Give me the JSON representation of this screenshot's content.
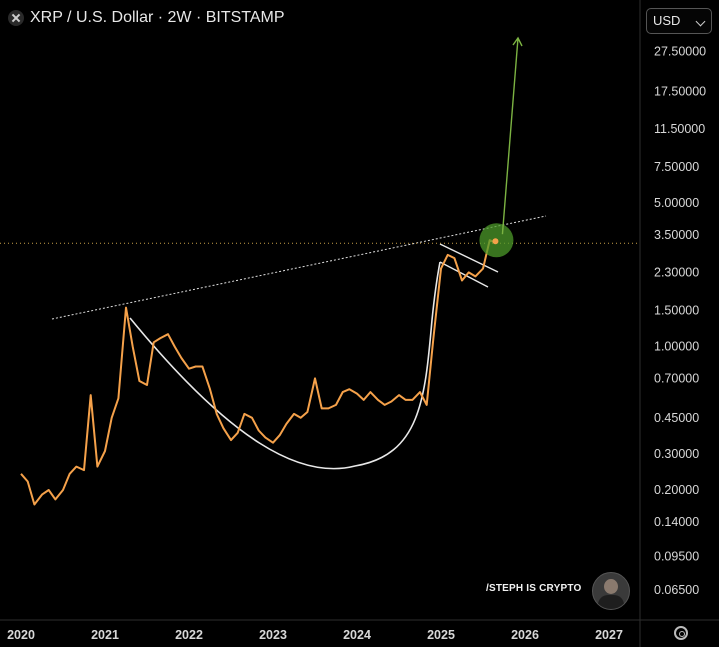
{
  "header": {
    "symbol_title": "XRP / U.S. Dollar · 2W · BITSTAMP"
  },
  "currency_select": {
    "value": "USD"
  },
  "watermark": {
    "text": "/STEPH IS CRYPTO"
  },
  "colors": {
    "price": "#f5a14a",
    "cup": "#e8e8e8",
    "target_arrow": "#7cb342",
    "highlight": "#4c9a2a",
    "current_price_line": "#caa24a"
  },
  "chart_data": {
    "type": "line",
    "title": "XRP / U.S. Dollar · 2W · BITSTAMP",
    "y_scale": "log",
    "y_ticks": [
      "27.50000",
      "17.50000",
      "11.50000",
      "7.50000",
      "5.00000",
      "3.50000",
      "2.30000",
      "1.50000",
      "1.00000",
      "0.70000",
      "0.45000",
      "0.30000",
      "0.20000",
      "0.14000",
      "0.09500",
      "0.06500"
    ],
    "x_ticks": [
      "2020",
      "2021",
      "2022",
      "2023",
      "2024",
      "2025",
      "2026",
      "2027"
    ],
    "current_price": 3.3,
    "series": [
      {
        "x": [
          2020.0,
          2020.08,
          2020.16,
          2020.25,
          2020.33,
          2020.41,
          2020.5,
          2020.58,
          2020.66,
          2020.75,
          2020.83,
          2020.91,
          2021.0,
          2021.08,
          2021.16,
          2021.25,
          2021.33,
          2021.41,
          2021.5,
          2021.58,
          2021.66,
          2021.75,
          2021.83,
          2021.91,
          2022.0,
          2022.08,
          2022.16,
          2022.25,
          2022.33,
          2022.41,
          2022.5,
          2022.58,
          2022.66,
          2022.75,
          2022.83,
          2022.91,
          2023.0,
          2023.08,
          2023.16,
          2023.25,
          2023.33,
          2023.41,
          2023.5,
          2023.58,
          2023.66,
          2023.75,
          2023.83,
          2023.91,
          2024.0,
          2024.08,
          2024.16,
          2024.25,
          2024.33,
          2024.41,
          2024.5,
          2024.58,
          2024.66,
          2024.75,
          2024.83,
          2024.91,
          2025.0,
          2025.08,
          2025.16,
          2025.25,
          2025.33,
          2025.41,
          2025.5,
          2025.58,
          2025.66
        ],
        "values": [
          0.24,
          0.22,
          0.17,
          0.19,
          0.2,
          0.18,
          0.2,
          0.24,
          0.26,
          0.25,
          0.58,
          0.26,
          0.31,
          0.45,
          0.56,
          1.55,
          1.0,
          0.68,
          0.65,
          1.05,
          1.1,
          1.15,
          1.0,
          0.88,
          0.78,
          0.8,
          0.8,
          0.62,
          0.47,
          0.4,
          0.35,
          0.38,
          0.47,
          0.45,
          0.39,
          0.36,
          0.34,
          0.37,
          0.42,
          0.47,
          0.45,
          0.48,
          0.7,
          0.5,
          0.5,
          0.52,
          0.6,
          0.62,
          0.59,
          0.55,
          0.6,
          0.55,
          0.52,
          0.54,
          0.58,
          0.55,
          0.55,
          0.6,
          0.52,
          1.1,
          2.4,
          2.8,
          2.7,
          2.1,
          2.3,
          2.2,
          2.4,
          3.3,
          3.2
        ]
      }
    ],
    "projection": {
      "from_x": 2025.66,
      "from_y": 3.3,
      "to_x": 2025.9,
      "to_y": 27.5
    }
  },
  "x_axis": {
    "labels": [
      "2020",
      "2021",
      "2022",
      "2023",
      "2024",
      "2025",
      "2026",
      "2027"
    ]
  },
  "y_axis": {
    "labels": [
      "27.50000",
      "17.50000",
      "11.50000",
      "7.50000",
      "5.00000",
      "3.50000",
      "2.30000",
      "1.50000",
      "1.00000",
      "0.70000",
      "0.45000",
      "0.30000",
      "0.20000",
      "0.14000",
      "0.09500",
      "0.06500"
    ]
  }
}
